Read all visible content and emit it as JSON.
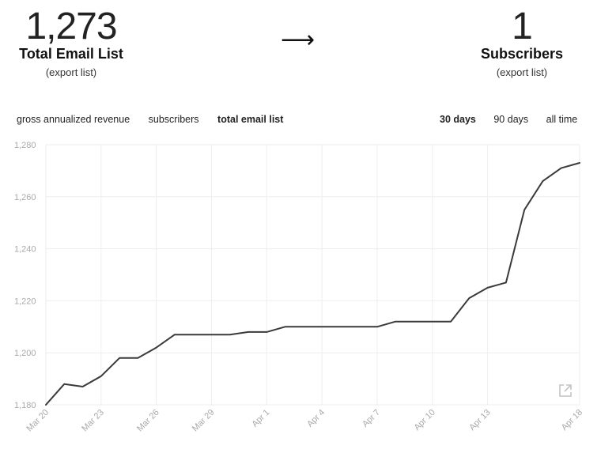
{
  "stats": {
    "left": {
      "value": "1,273",
      "label": "Total Email List",
      "export": "(export list)"
    },
    "arrow": "⟶",
    "right": {
      "value": "1",
      "label": "Subscribers",
      "export": "(export list)"
    }
  },
  "metric_tabs": [
    {
      "label": "gross annualized revenue",
      "active": false
    },
    {
      "label": "subscribers",
      "active": false
    },
    {
      "label": "total email list",
      "active": true
    }
  ],
  "range_tabs": [
    {
      "label": "30 days",
      "active": true
    },
    {
      "label": "90 days",
      "active": false
    },
    {
      "label": "all time",
      "active": false
    }
  ],
  "icons": {
    "export_chart": "external-link-icon"
  },
  "chart_data": {
    "type": "line",
    "title": "",
    "xlabel": "",
    "ylabel": "",
    "ylim": [
      1180,
      1280
    ],
    "yticks": [
      1180,
      1200,
      1220,
      1240,
      1260,
      1280
    ],
    "ytick_labels": [
      "1,180",
      "1,200",
      "1,220",
      "1,240",
      "1,260",
      "1,280"
    ],
    "xticks": [
      {
        "label": "Mar 20",
        "index": 0
      },
      {
        "label": "Mar 23",
        "index": 3
      },
      {
        "label": "Mar 26",
        "index": 6
      },
      {
        "label": "Mar 29",
        "index": 9
      },
      {
        "label": "Apr 1",
        "index": 12
      },
      {
        "label": "Apr 4",
        "index": 15
      },
      {
        "label": "Apr 7",
        "index": 18
      },
      {
        "label": "Apr 10",
        "index": 21
      },
      {
        "label": "Apr 13",
        "index": 24
      },
      {
        "label": "Apr 18",
        "index": 29
      }
    ],
    "grid": true,
    "line_color": "#3a3a3a",
    "series": [
      {
        "x": [
          "Mar 20",
          "Mar 21",
          "Mar 22",
          "Mar 23",
          "Mar 24",
          "Mar 25",
          "Mar 26",
          "Mar 27",
          "Mar 28",
          "Mar 29",
          "Mar 30",
          "Mar 31",
          "Apr 1",
          "Apr 2",
          "Apr 3",
          "Apr 4",
          "Apr 5",
          "Apr 6",
          "Apr 7",
          "Apr 8",
          "Apr 9",
          "Apr 10",
          "Apr 11",
          "Apr 12",
          "Apr 13",
          "Apr 14",
          "Apr 15",
          "Apr 16",
          "Apr 17",
          "Apr 18"
        ],
        "values": [
          1180,
          1188,
          1187,
          1191,
          1198,
          1198,
          1202,
          1207,
          1207,
          1207,
          1207,
          1208,
          1208,
          1210,
          1210,
          1210,
          1210,
          1210,
          1210,
          1212,
          1212,
          1212,
          1212,
          1221,
          1225,
          1227,
          1255,
          1266,
          1271,
          1273
        ]
      }
    ]
  }
}
